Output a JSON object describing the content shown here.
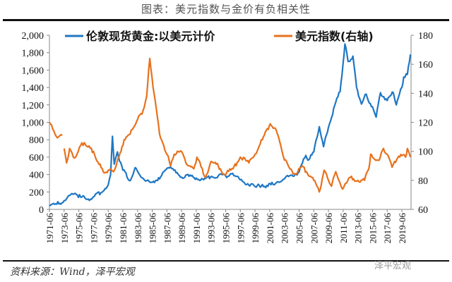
{
  "title": "图表：美元指数与金价有负相关性",
  "source": "资料来源：Wind，泽平宏观",
  "watermark": "泽平宏观",
  "chart_data": {
    "type": "line",
    "xlabel": "",
    "ylabel_left": "",
    "ylabel_right": "",
    "ylim_left": [
      0,
      2000
    ],
    "ylim_right": [
      60,
      180
    ],
    "yticks_left": [
      "0",
      "200",
      "400",
      "600",
      "800",
      "1,000",
      "1,200",
      "1,400",
      "1,600",
      "1,800",
      "2,000"
    ],
    "yticks_right": [
      "60",
      "80",
      "100",
      "120",
      "140",
      "160",
      "180"
    ],
    "xticks": [
      "1971-06",
      "1973-06",
      "1975-06",
      "1977-06",
      "1979-06",
      "1981-06",
      "1983-06",
      "1985-06",
      "1987-06",
      "1989-06",
      "1991-06",
      "1993-06",
      "1995-06",
      "1997-06",
      "1999-06",
      "2001-06",
      "2003-06",
      "2005-06",
      "2007-06",
      "2009-06",
      "2011-06",
      "2013-06",
      "2015-06",
      "2017-06",
      "2019-06"
    ],
    "legend_position": "top",
    "series": [
      {
        "name": "伦敦现货黄金:以美元计价",
        "axis": "left",
        "color": "#1f77c4",
        "x": [
          "1971-06",
          "1972-06",
          "1973-06",
          "1974-03",
          "1974-12",
          "1975-09",
          "1976-08",
          "1977-06",
          "1978-06",
          "1979-06",
          "1979-10",
          "1980-01",
          "1980-04",
          "1980-09",
          "1981-06",
          "1982-06",
          "1983-02",
          "1983-10",
          "1984-09",
          "1985-03",
          "1986-06",
          "1987-06",
          "1987-12",
          "1988-09",
          "1989-06",
          "1990-06",
          "1991-06",
          "1992-06",
          "1993-07",
          "1994-06",
          "1995-06",
          "1996-02",
          "1997-06",
          "1998-06",
          "1999-08",
          "2000-06",
          "2001-03",
          "2002-06",
          "2003-06",
          "2004-06",
          "2005-06",
          "2006-05",
          "2006-10",
          "2007-06",
          "2008-03",
          "2008-10",
          "2009-06",
          "2010-06",
          "2011-01",
          "2011-09",
          "2012-02",
          "2012-10",
          "2013-04",
          "2013-12",
          "2014-06",
          "2015-06",
          "2015-12",
          "2016-07",
          "2017-06",
          "2018-04",
          "2018-09",
          "2019-06",
          "2019-09",
          "2020-03",
          "2020-08"
        ],
        "y": [
          40,
          60,
          100,
          160,
          185,
          140,
          115,
          145,
          190,
          280,
          400,
          840,
          520,
          660,
          450,
          330,
          480,
          390,
          330,
          310,
          350,
          470,
          490,
          420,
          370,
          380,
          360,
          340,
          380,
          385,
          385,
          410,
          340,
          295,
          255,
          285,
          265,
          315,
          350,
          395,
          430,
          620,
          570,
          660,
          950,
          720,
          940,
          1230,
          1350,
          1900,
          1700,
          1760,
          1400,
          1210,
          1320,
          1180,
          1060,
          1340,
          1250,
          1340,
          1200,
          1400,
          1520,
          1550,
          1780
        ]
      },
      {
        "name": "美元指数(右轴)",
        "axis": "right",
        "color": "#e8711c",
        "x": [
          "1971-06",
          "1972-03",
          "1972-09",
          "1973-03",
          null,
          "1973-06",
          "1973-10",
          "1974-03",
          "1974-09",
          "1975-03",
          "1975-09",
          "1976-03",
          "1976-09",
          "1977-06",
          "1978-03",
          "1978-10",
          "1979-06",
          "1980-03",
          "1980-07",
          "1981-03",
          "1981-08",
          "1982-06",
          "1982-11",
          "1983-06",
          "1984-03",
          "1984-09",
          "1985-02",
          "1985-09",
          "1986-06",
          "1987-06",
          "1987-12",
          "1988-06",
          "1989-06",
          "1990-01",
          "1990-06",
          "1991-02",
          "1991-07",
          "1992-09",
          "1993-06",
          "1994-06",
          "1995-04",
          "1996-06",
          "1997-06",
          "1998-08",
          "1999-06",
          "2000-06",
          "2001-07",
          "2002-03",
          "2002-12",
          "2003-06",
          "2004-03",
          "2004-12",
          "2005-11",
          "2006-06",
          "2007-06",
          "2008-03",
          "2008-11",
          "2009-03",
          "2009-11",
          "2010-06",
          "2011-05",
          "2012-06",
          "2013-06",
          "2014-05",
          "2014-12",
          "2015-03",
          "2015-06",
          "2016-05",
          "2016-12",
          "2017-06",
          "2018-02",
          "2018-06",
          "2019-06",
          "2019-12",
          "2020-03",
          "2020-08"
        ],
        "y": [
          120,
          112,
          110,
          111,
          null,
          102,
          92,
          102,
          96,
          98,
          104,
          106,
          103,
          100,
          91,
          86,
          87,
          86,
          90,
          100,
          108,
          112,
          116,
          122,
          128,
          138,
          164,
          140,
          112,
          98,
          90,
          98,
          100,
          92,
          90,
          88,
          96,
          82,
          93,
          90,
          84,
          88,
          96,
          92,
          98,
          108,
          119,
          116,
          104,
          94,
          88,
          84,
          90,
          86,
          80,
          72,
          87,
          84,
          76,
          86,
          74,
          82,
          80,
          80,
          88,
          98,
          96,
          94,
          102,
          98,
          89,
          93,
          97,
          96,
          102,
          96
        ]
      }
    ]
  }
}
